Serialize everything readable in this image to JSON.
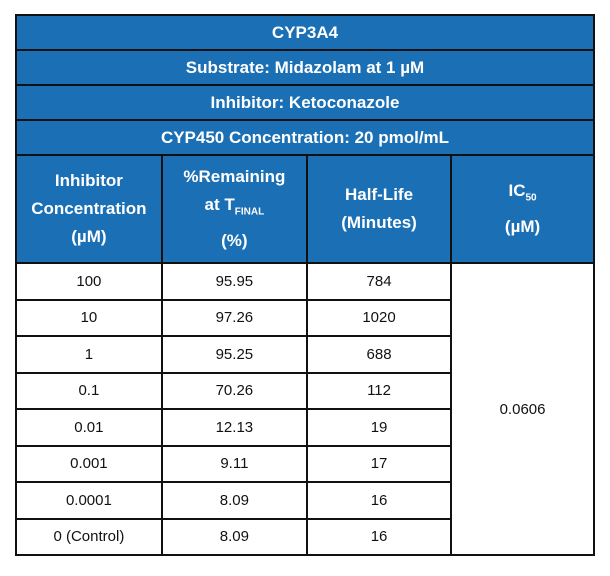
{
  "title": "CYP3A4",
  "substrate": "Substrate: Midazolam at 1 µM",
  "inhibitor": "Inhibitor: Ketoconazole",
  "cyp_conc": "CYP450 Concentration: 20 pmol/mL",
  "headers": {
    "c1a": "Inhibitor",
    "c1b": "Concentration",
    "c1c": "(µM)",
    "c2a": "%Remaining",
    "c2b": "at T",
    "c2sub": "FINAL",
    "c2c": "(%)",
    "c3a": "Half-Life",
    "c3b": "(Minutes)",
    "c4a": "IC",
    "c4sub": "50",
    "c4b": "(µM)"
  },
  "rows": [
    [
      "100",
      "95.95",
      "784"
    ],
    [
      "10",
      "97.26",
      "1020"
    ],
    [
      "1",
      "95.25",
      "688"
    ],
    [
      "0.1",
      "70.26",
      "112"
    ],
    [
      "0.01",
      "12.13",
      "19"
    ],
    [
      "0.001",
      "9.11",
      "17"
    ],
    [
      "0.0001",
      "8.09",
      "16"
    ],
    [
      "0 (Control)",
      "8.09",
      "16"
    ]
  ],
  "ic50": "0.0606",
  "colors": {
    "header_bg": "#1b6fb5",
    "header_text": "#ffffff"
  }
}
